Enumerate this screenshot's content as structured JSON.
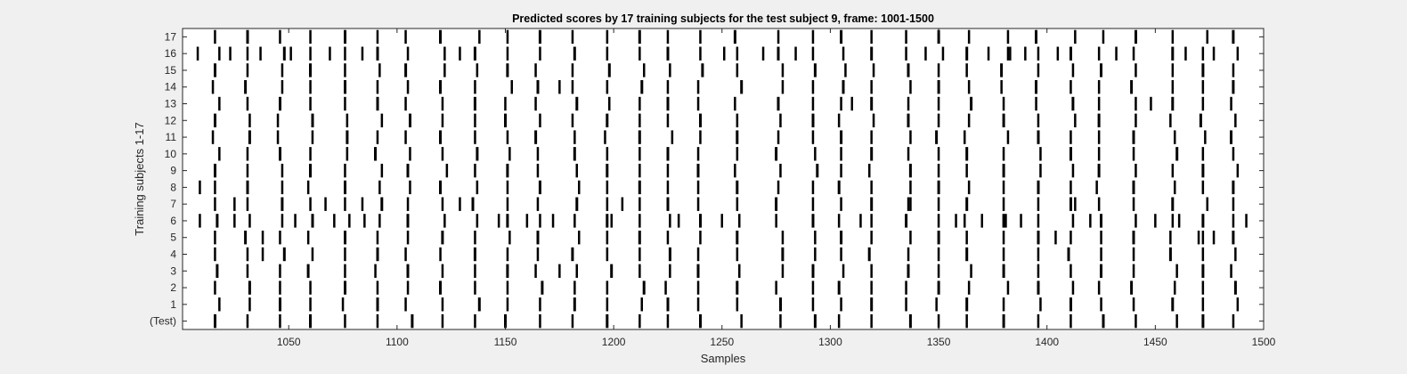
{
  "chart_data": {
    "type": "raster",
    "title": "Predicted scores by 17 training subjects for the test subject 9, frame: 1001-1500",
    "xlabel": "Samples",
    "ylabel": "Training subjects 1-17",
    "xlim": [
      1001,
      1500
    ],
    "xticks": [
      1050,
      1100,
      1150,
      1200,
      1250,
      1300,
      1350,
      1400,
      1450,
      1500
    ],
    "rows": [
      "(Test)",
      "1",
      "2",
      "3",
      "4",
      "5",
      "6",
      "7",
      "8",
      "9",
      "10",
      "11",
      "12",
      "13",
      "14",
      "15",
      "16",
      "17"
    ],
    "common_events": [
      1016,
      1031,
      1046,
      1060,
      1076,
      1091,
      1105,
      1121,
      1136,
      1151,
      1165,
      1182,
      1197,
      1212,
      1225,
      1239,
      1257,
      1276,
      1292,
      1305,
      1319,
      1336,
      1350,
      1363,
      1380,
      1396,
      1411,
      1424,
      1440,
      1458,
      1472,
      1486
    ],
    "extra_events": {
      "6": [
        1009,
        1025,
        1053,
        1071,
        1085,
        1147,
        1160,
        1172,
        1199,
        1230,
        1250,
        1314,
        1358,
        1370,
        1381,
        1388,
        1420,
        1450,
        1461,
        1492
      ],
      "16": [
        1008,
        1023,
        1037,
        1051,
        1069,
        1084,
        1129,
        1251,
        1269,
        1284,
        1344,
        1373,
        1383,
        1390,
        1405,
        1432,
        1464,
        1477
      ],
      "7": [
        1025,
        1067,
        1084,
        1129,
        1204,
        1337,
        1413
      ],
      "5": [
        1038,
        1404,
        1470,
        1477
      ],
      "4": [
        1038
      ],
      "8": [
        1009
      ],
      "13": [
        1310,
        1448
      ],
      "14": [
        1175
      ],
      "3": [
        1175
      ]
    }
  }
}
